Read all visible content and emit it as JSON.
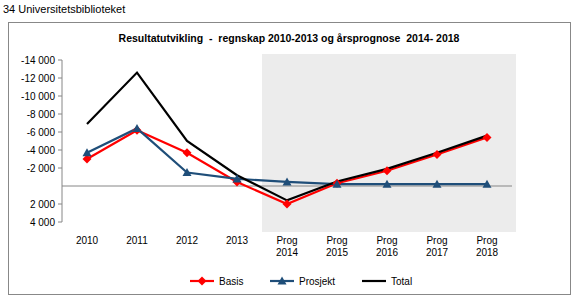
{
  "page_title": "34 Universitetsbiblioteket",
  "chart_data": {
    "type": "line",
    "title": "Resultatutvikling  -  regnskap 2010-2013 og årsprognose  2014- 2018",
    "categories": [
      "2010",
      "2011",
      "2012",
      "2013",
      "Prog 2014",
      "Prog 2015",
      "Prog 2016",
      "Prog 2017",
      "Prog 2018"
    ],
    "series": [
      {
        "name": "Basis",
        "color": "#ff0000",
        "marker": "diamond",
        "values": [
          -3000,
          -6200,
          -3700,
          -450,
          2000,
          -300,
          -1700,
          -3500,
          -5400
        ]
      },
      {
        "name": "Prosjekt",
        "color": "#1f4e79",
        "marker": "triangle",
        "values": [
          -3700,
          -6400,
          -1500,
          -800,
          -450,
          -200,
          -200,
          -200,
          -200
        ]
      },
      {
        "name": "Total",
        "color": "#000000",
        "marker": "none",
        "values": [
          -6900,
          -12600,
          -5000,
          -1200,
          1600,
          -500,
          -1900,
          -3700,
          -5600
        ]
      }
    ],
    "ylim": [
      4000,
      -14000
    ],
    "yticks": [
      {
        "value": -14000,
        "label": "-14 000"
      },
      {
        "value": -12000,
        "label": "-12 000"
      },
      {
        "value": -10000,
        "label": "-10 000"
      },
      {
        "value": -8000,
        "label": "-8 000"
      },
      {
        "value": -6000,
        "label": "-6 000"
      },
      {
        "value": -4000,
        "label": "-4 000"
      },
      {
        "value": -2000,
        "label": "-2 000"
      },
      {
        "value": 2000,
        "label": "2 000"
      },
      {
        "value": 4000,
        "label": "4 000"
      }
    ],
    "grid": false,
    "legend": "bottom"
  }
}
